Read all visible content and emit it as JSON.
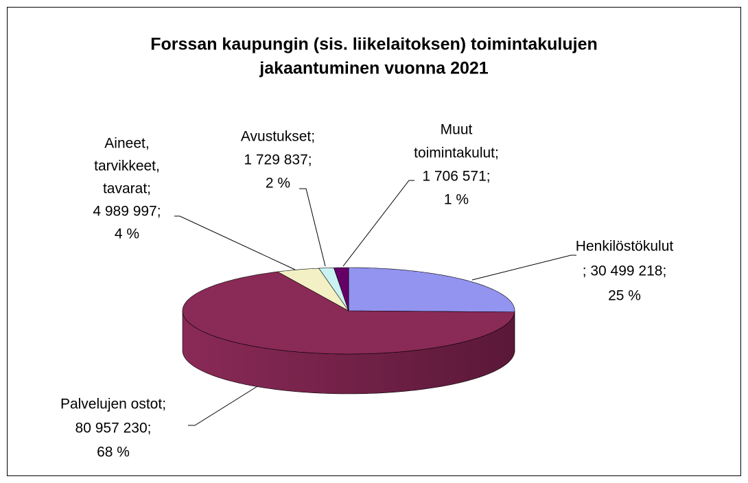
{
  "chart_data": {
    "type": "pie",
    "title": [
      "Forssan kaupungin (sis. liikelaitoksen) toimintakulujen",
      "jakaantuminen  vuonna 2021"
    ],
    "labels": [
      [
        "Henkilöstökulut",
        "; 30 499 218;",
        "25 %"
      ],
      [
        "Palvelujen ostot;",
        "80 957 230;",
        "68 %"
      ],
      [
        "Aineet,",
        "tarvikkeet,",
        "tavarat;",
        "4 989 997;",
        "4 %"
      ],
      [
        "Avustukset;",
        "1 729 837;",
        "2 %"
      ],
      [
        "Muut",
        "toimintakulut;",
        "1 706 571;",
        "1 %"
      ]
    ],
    "values": [
      30499218,
      80957230,
      4989997,
      1729837,
      1706571
    ],
    "percents": [
      25,
      68,
      4,
      2,
      1
    ],
    "colors": [
      "#9393f0",
      "#8a2a57",
      "#f2f0c4",
      "#caf2f2",
      "#660066"
    ],
    "side_colors": [
      "#6b6bb8",
      "#5a1838",
      "#b8b690",
      "#90b8b8",
      "#400040"
    ]
  }
}
